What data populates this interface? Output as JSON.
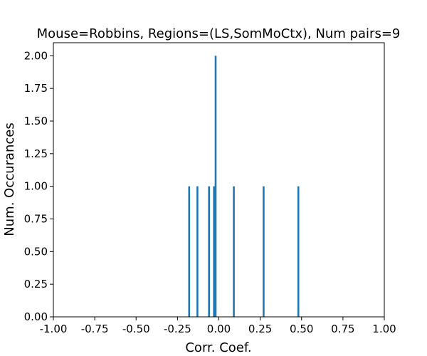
{
  "chart_data": {
    "type": "bar",
    "title": "Mouse=Robbins, Regions=(LS,SomMoCtx), Num pairs=9",
    "xlabel": "Corr. Coef.",
    "ylabel": "Num. Occurances",
    "xlim": [
      -1.0,
      1.0
    ],
    "ylim": [
      0.0,
      2.1
    ],
    "x_ticks": [
      "-1.00",
      "-0.75",
      "-0.50",
      "-0.25",
      "0.00",
      "0.25",
      "0.50",
      "0.75",
      "1.00"
    ],
    "x_tick_values": [
      -1.0,
      -0.75,
      -0.5,
      -0.25,
      0.0,
      0.25,
      0.5,
      0.75,
      1.0
    ],
    "y_ticks": [
      "0.00",
      "0.25",
      "0.50",
      "0.75",
      "1.00",
      "1.25",
      "1.50",
      "1.75",
      "2.00"
    ],
    "y_tick_values": [
      0.0,
      0.25,
      0.5,
      0.75,
      1.0,
      1.25,
      1.5,
      1.75,
      2.0
    ],
    "bin_width": 0.01,
    "bars": [
      {
        "x": -0.18,
        "count": 1
      },
      {
        "x": -0.13,
        "count": 1
      },
      {
        "x": -0.06,
        "count": 1
      },
      {
        "x": -0.03,
        "count": 1
      },
      {
        "x": -0.02,
        "count": 2
      },
      {
        "x": 0.09,
        "count": 1
      },
      {
        "x": 0.27,
        "count": 1
      },
      {
        "x": 0.48,
        "count": 1
      }
    ],
    "bar_color": "#1f77b4",
    "grid": false,
    "legend": "none"
  }
}
